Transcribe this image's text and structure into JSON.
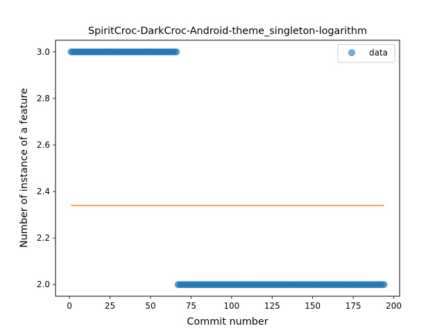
{
  "chart_data": {
    "type": "scatter",
    "title": "SpiritCroc-DarkCroc-Android-theme_singleton-logarithm",
    "xlabel": "Commit number",
    "ylabel": "Number of instance of a feature",
    "xlim": [
      -8.6,
      203.6
    ],
    "ylim": [
      1.95,
      3.05
    ],
    "xticks": [
      0,
      25,
      50,
      75,
      100,
      125,
      150,
      175,
      200
    ],
    "yticks": [
      2.0,
      2.2,
      2.4,
      2.6,
      2.8,
      3.0
    ],
    "ytick_labels": [
      "2.0",
      "2.2",
      "2.4",
      "2.6",
      "2.8",
      "3.0"
    ],
    "grid": false,
    "legend": {
      "position": "top-right",
      "entries": [
        "data"
      ]
    },
    "series": [
      {
        "name": "data",
        "kind": "scatter",
        "color": "#1f77b4",
        "segments": [
          {
            "x_start": 1,
            "x_end": 66,
            "y": 3.0
          },
          {
            "x_start": 67,
            "x_end": 194,
            "y": 2.0
          }
        ]
      },
      {
        "kind": "line",
        "color": "#ff7f0e",
        "x": [
          1,
          194
        ],
        "y": [
          2.34,
          2.34
        ]
      }
    ]
  }
}
